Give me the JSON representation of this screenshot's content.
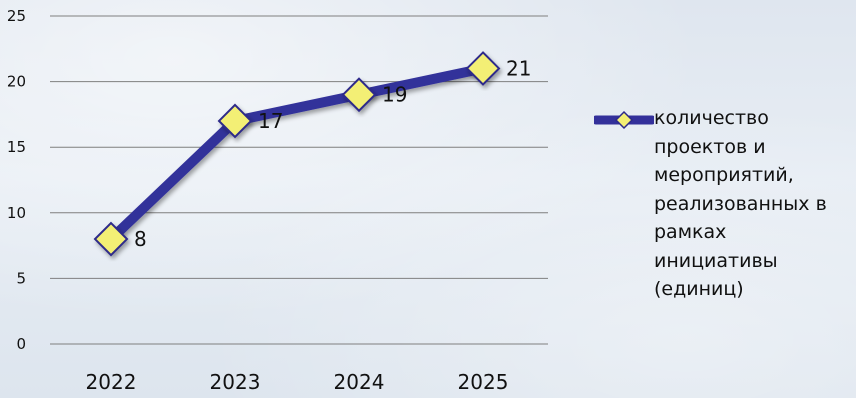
{
  "colors": {
    "line": "#33309a",
    "marker_fill": "#f3ef74",
    "marker_stroke": "#2d2a8a",
    "grid": "#7f7f7f"
  },
  "chart_data": {
    "type": "line",
    "categories": [
      "2022",
      "2023",
      "2024",
      "2025"
    ],
    "series": [
      {
        "name": "количество проектов и мероприятий, реализованных в рамках инициативы (единиц)",
        "values": [
          8,
          17,
          19,
          21
        ],
        "marker": "diamond"
      }
    ],
    "data_labels": [
      "8",
      "17",
      "19",
      "21"
    ],
    "ylim": [
      0,
      25
    ],
    "yticks": [
      0,
      5,
      10,
      15,
      20,
      25
    ],
    "ytick_labels": [
      "0",
      "5",
      "10",
      "15",
      "20",
      "25"
    ],
    "grid": "horizontal",
    "legend_position": "right",
    "title": "",
    "xlabel": "",
    "ylabel": ""
  },
  "legend": {
    "lines": [
      "количество",
      "проектов и",
      "мероприятий,",
      "реализованных в",
      "рамках",
      "инициативы",
      "(единиц)"
    ]
  }
}
